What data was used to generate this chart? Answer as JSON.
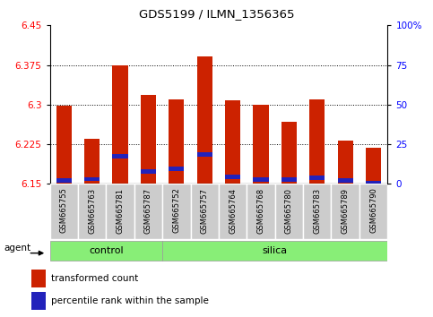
{
  "title": "GDS5199 / ILMN_1356365",
  "samples": [
    "GSM665755",
    "GSM665763",
    "GSM665781",
    "GSM665787",
    "GSM665752",
    "GSM665757",
    "GSM665764",
    "GSM665768",
    "GSM665780",
    "GSM665783",
    "GSM665789",
    "GSM665790"
  ],
  "red_values": [
    6.298,
    6.235,
    6.375,
    6.318,
    6.31,
    6.392,
    6.308,
    6.3,
    6.268,
    6.31,
    6.232,
    6.218
  ],
  "blue_values": [
    6.157,
    6.159,
    6.202,
    6.174,
    6.178,
    6.206,
    6.163,
    6.158,
    6.158,
    6.161,
    6.156,
    6.151
  ],
  "y_min": 6.15,
  "y_max": 6.45,
  "y_ticks_left": [
    6.15,
    6.225,
    6.3,
    6.375,
    6.45
  ],
  "y_ticks_right": [
    0,
    25,
    50,
    75,
    100
  ],
  "control_samples": 4,
  "silica_samples": 8,
  "control_label": "control",
  "silica_label": "silica",
  "agent_label": "agent",
  "legend_red": "transformed count",
  "legend_blue": "percentile rank within the sample",
  "bar_color_red": "#cc2200",
  "bar_color_blue": "#2222bb",
  "control_bg": "#88ee77",
  "silica_bg": "#88ee77",
  "tick_bg": "#cccccc",
  "bar_width": 0.55
}
